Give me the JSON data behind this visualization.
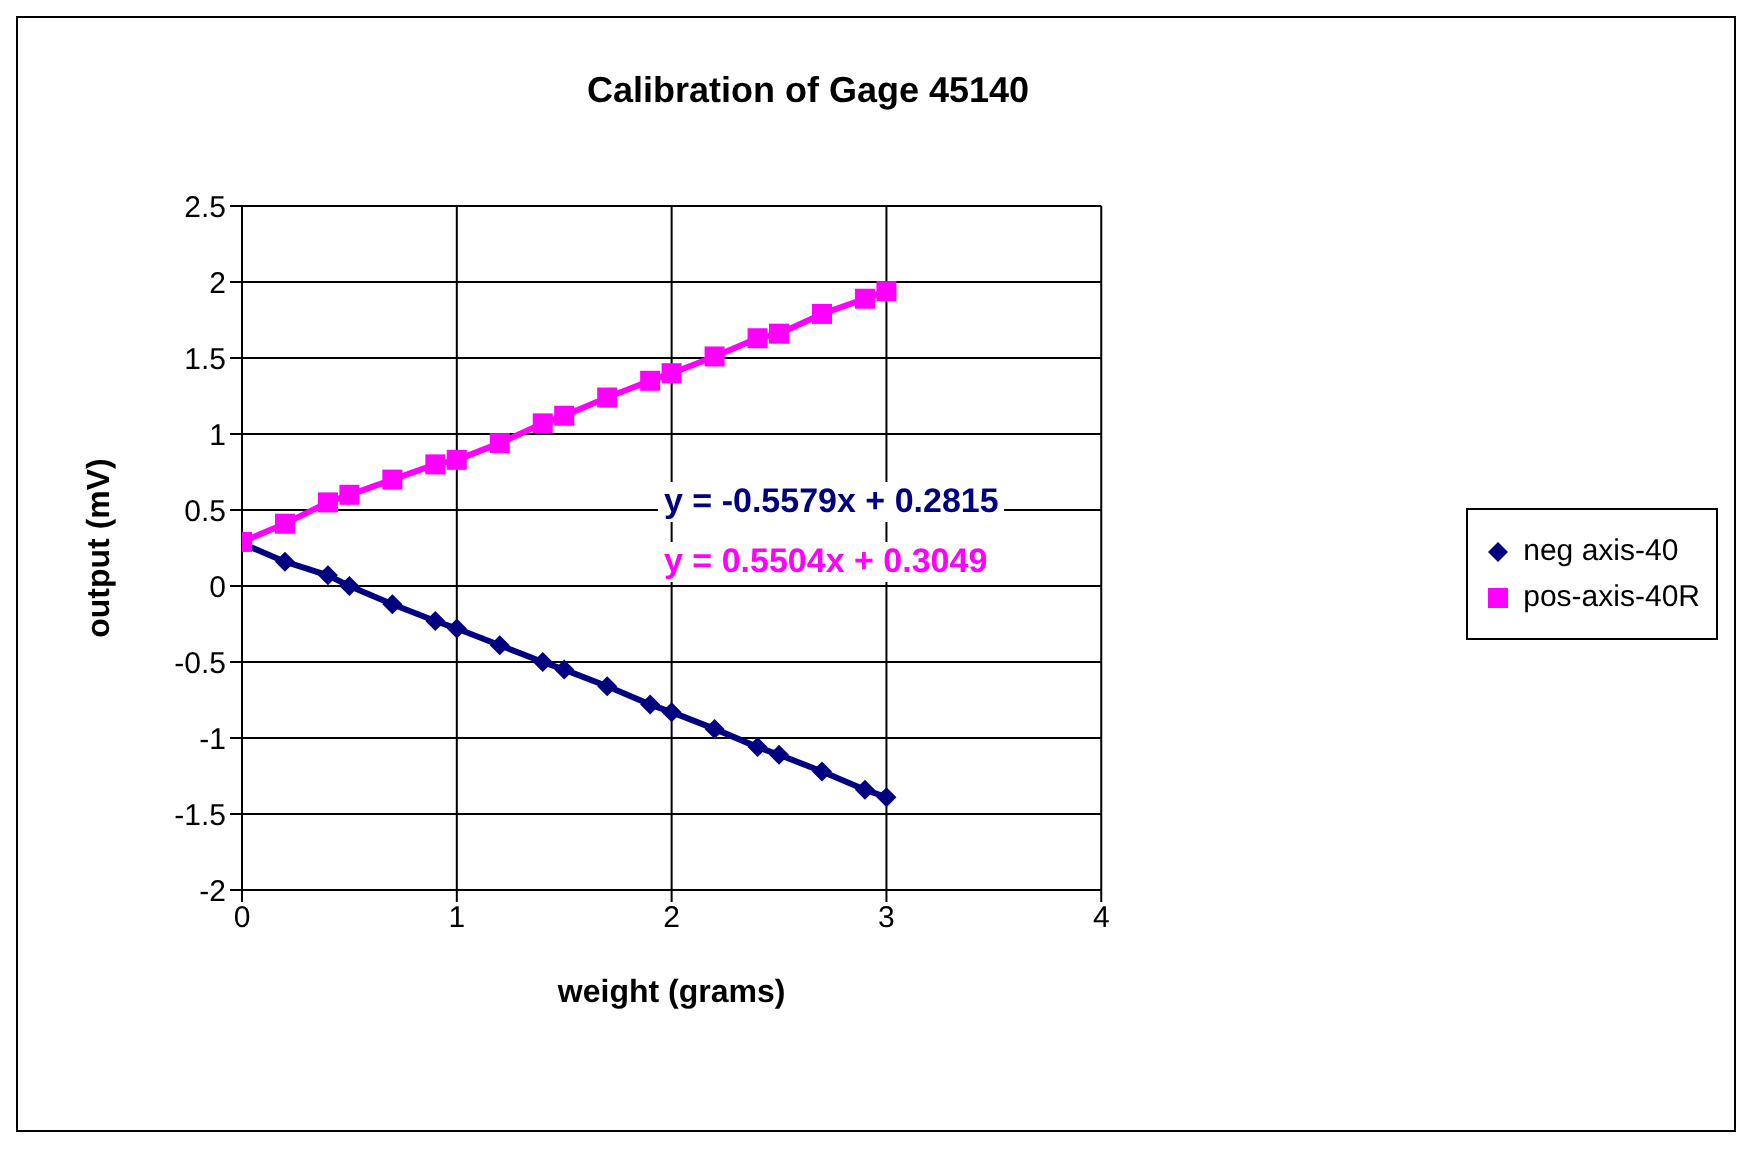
{
  "chart_data": {
    "type": "line",
    "title": "Calibration of Gage 45140",
    "xlabel": "weight (grams)",
    "ylabel": "output (mV)",
    "x": [
      0,
      0.2,
      0.4,
      0.5,
      0.7,
      0.9,
      1.0,
      1.2,
      1.4,
      1.5,
      1.7,
      1.9,
      2.0,
      2.2,
      2.4,
      2.5,
      2.7,
      2.9,
      3.0
    ],
    "series": [
      {
        "name": "neg axis-40",
        "color": "#000080",
        "marker": "diamond",
        "values": [
          0.28,
          0.16,
          0.07,
          0.0,
          -0.12,
          -0.23,
          -0.28,
          -0.39,
          -0.5,
          -0.55,
          -0.66,
          -0.78,
          -0.83,
          -0.94,
          -1.06,
          -1.11,
          -1.22,
          -1.34,
          -1.39
        ]
      },
      {
        "name": "pos-axis-40R",
        "color": "#ff00ff",
        "marker": "square",
        "values": [
          0.29,
          0.41,
          0.55,
          0.6,
          0.7,
          0.8,
          0.83,
          0.94,
          1.07,
          1.12,
          1.24,
          1.35,
          1.4,
          1.51,
          1.63,
          1.66,
          1.79,
          1.89,
          1.94
        ]
      }
    ],
    "annotations": [
      "y = -0.5579x + 0.2815",
      "y = 0.5504x + 0.3049"
    ],
    "xlim": [
      0,
      4
    ],
    "xticks": [
      0,
      1,
      2,
      3,
      4
    ],
    "ylim": [
      -2,
      2.5
    ],
    "yticks": [
      -2,
      -1.5,
      -1,
      -0.5,
      0,
      0.5,
      1,
      1.5,
      2,
      2.5
    ],
    "grid": true,
    "legend": "right",
    "line_style": "solid"
  }
}
